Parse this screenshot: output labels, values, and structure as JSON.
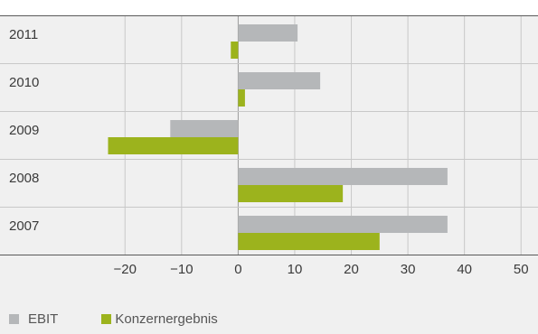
{
  "chart_data": {
    "type": "bar",
    "orientation": "horizontal",
    "categories": [
      "2011",
      "2010",
      "2009",
      "2008",
      "2007"
    ],
    "series": [
      {
        "name": "EBIT",
        "color": "#b5b7b9",
        "values": [
          10.5,
          14.5,
          -12,
          37,
          37
        ]
      },
      {
        "name": "Konzernergebnis",
        "color": "#9cb31d",
        "values": [
          -1.3,
          1.2,
          -23,
          18.5,
          25
        ]
      }
    ],
    "x_ticks": [
      -20,
      -10,
      0,
      10,
      20,
      30,
      40,
      50
    ],
    "x_tick_labels": [
      "−20",
      "−10",
      "0",
      "10",
      "20",
      "30",
      "40",
      "50"
    ],
    "xlim": [
      -40.5,
      53
    ],
    "grid": true,
    "legend_position": "bottom-left",
    "title": "",
    "xlabel": "",
    "ylabel": ""
  }
}
